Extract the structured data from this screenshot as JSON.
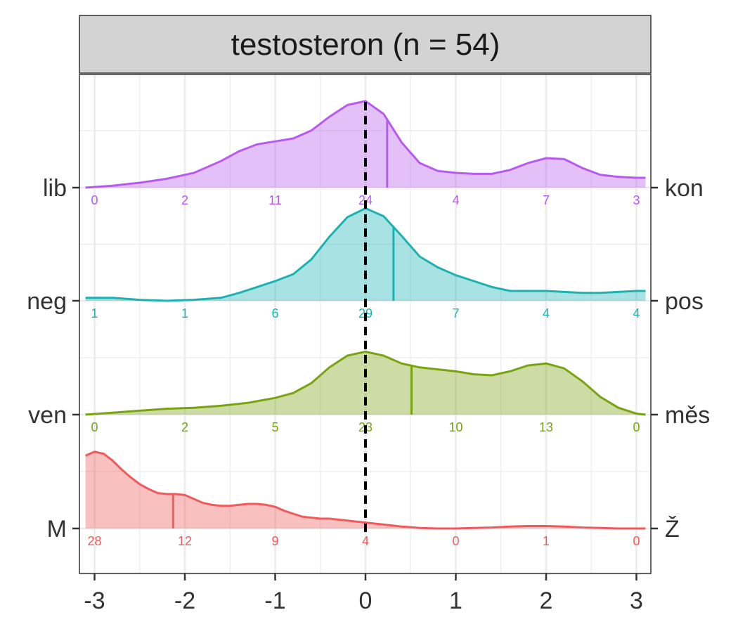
{
  "chart_data": {
    "type": "ridgeline",
    "facet_title": "testosteron (n = 54)",
    "xlim": [
      -3.1,
      3.1
    ],
    "x_ticks": [
      -3,
      -2,
      -1,
      0,
      1,
      2,
      3
    ],
    "x_tick_labels": [
      "-3",
      "-2",
      "-1",
      "0",
      "1",
      "2",
      "3"
    ],
    "reference_line_x": 0,
    "grid": true,
    "count_positions": [
      -3,
      -2,
      -1,
      0,
      1,
      2,
      3
    ],
    "series": [
      {
        "left_label": "M",
        "right_label": "Ž",
        "color": "#F05A5A",
        "median": -2.13,
        "counts": [
          "28",
          "12",
          "9",
          "4",
          "0",
          "1",
          "0"
        ],
        "density_x": [
          -3.1,
          -3.0,
          -2.9,
          -2.8,
          -2.7,
          -2.6,
          -2.5,
          -2.4,
          -2.3,
          -2.2,
          -2.1,
          -2.0,
          -1.9,
          -1.8,
          -1.7,
          -1.6,
          -1.5,
          -1.4,
          -1.3,
          -1.2,
          -1.1,
          -1.0,
          -0.9,
          -0.8,
          -0.7,
          -0.6,
          -0.5,
          -0.4,
          -0.3,
          -0.2,
          -0.1,
          0.0,
          0.2,
          0.4,
          0.6,
          0.8,
          1.0,
          1.2,
          1.4,
          1.6,
          1.8,
          2.0,
          2.2,
          2.4,
          2.6,
          2.8,
          3.0,
          3.1
        ],
        "density_y": [
          0.74,
          0.78,
          0.76,
          0.69,
          0.6,
          0.52,
          0.45,
          0.4,
          0.36,
          0.35,
          0.35,
          0.34,
          0.3,
          0.26,
          0.24,
          0.23,
          0.23,
          0.24,
          0.25,
          0.25,
          0.24,
          0.22,
          0.18,
          0.15,
          0.12,
          0.11,
          0.1,
          0.1,
          0.09,
          0.08,
          0.07,
          0.06,
          0.04,
          0.02,
          0.005,
          0.0,
          0.0,
          0.005,
          0.01,
          0.02,
          0.025,
          0.025,
          0.02,
          0.01,
          0.005,
          0.0,
          0.0,
          0.0
        ]
      },
      {
        "left_label": "ven",
        "right_label": "měs",
        "color": "#7AA310",
        "median": 0.51,
        "counts": [
          "0",
          "2",
          "5",
          "23",
          "10",
          "13",
          "0"
        ],
        "density_x": [
          -3.1,
          -2.8,
          -2.5,
          -2.2,
          -1.9,
          -1.6,
          -1.3,
          -1.0,
          -0.8,
          -0.6,
          -0.4,
          -0.2,
          0.0,
          0.2,
          0.4,
          0.6,
          0.8,
          1.0,
          1.2,
          1.4,
          1.6,
          1.8,
          2.0,
          2.2,
          2.4,
          2.6,
          2.8,
          3.0,
          3.1
        ],
        "density_y": [
          0.0,
          0.02,
          0.04,
          0.06,
          0.07,
          0.09,
          0.12,
          0.17,
          0.22,
          0.32,
          0.48,
          0.6,
          0.64,
          0.6,
          0.52,
          0.48,
          0.46,
          0.44,
          0.41,
          0.4,
          0.44,
          0.5,
          0.52,
          0.47,
          0.34,
          0.18,
          0.07,
          0.01,
          0.0
        ]
      },
      {
        "left_label": "neg",
        "right_label": "pos",
        "color": "#1DB2B2",
        "median": 0.31,
        "counts": [
          "1",
          "1",
          "6",
          "29",
          "7",
          "4",
          "4"
        ],
        "density_x": [
          -3.1,
          -2.8,
          -2.5,
          -2.2,
          -1.9,
          -1.6,
          -1.4,
          -1.2,
          -1.0,
          -0.8,
          -0.6,
          -0.4,
          -0.2,
          0.0,
          0.2,
          0.4,
          0.6,
          0.8,
          1.0,
          1.2,
          1.4,
          1.6,
          1.8,
          2.0,
          2.2,
          2.4,
          2.6,
          2.8,
          3.0,
          3.1
        ],
        "density_y": [
          0.03,
          0.03,
          0.01,
          0.0,
          0.01,
          0.03,
          0.08,
          0.14,
          0.2,
          0.27,
          0.42,
          0.65,
          0.85,
          0.94,
          0.86,
          0.66,
          0.45,
          0.34,
          0.26,
          0.2,
          0.14,
          0.1,
          0.1,
          0.1,
          0.09,
          0.08,
          0.08,
          0.09,
          0.1,
          0.1
        ]
      },
      {
        "left_label": "lib",
        "right_label": "kon",
        "color": "#B85AF0",
        "median": 0.24,
        "counts": [
          "0",
          "2",
          "11",
          "24",
          "4",
          "7",
          "3"
        ],
        "density_x": [
          -3.1,
          -2.8,
          -2.5,
          -2.2,
          -1.9,
          -1.6,
          -1.4,
          -1.2,
          -1.0,
          -0.8,
          -0.6,
          -0.4,
          -0.2,
          0.0,
          0.2,
          0.4,
          0.6,
          0.8,
          1.0,
          1.2,
          1.4,
          1.6,
          1.8,
          2.0,
          2.2,
          2.4,
          2.6,
          2.8,
          3.0,
          3.1
        ],
        "density_y": [
          0.0,
          0.02,
          0.05,
          0.09,
          0.15,
          0.27,
          0.37,
          0.44,
          0.47,
          0.5,
          0.58,
          0.72,
          0.84,
          0.88,
          0.75,
          0.46,
          0.25,
          0.17,
          0.15,
          0.14,
          0.14,
          0.18,
          0.25,
          0.3,
          0.29,
          0.2,
          0.13,
          0.11,
          0.1,
          0.1
        ]
      }
    ]
  }
}
